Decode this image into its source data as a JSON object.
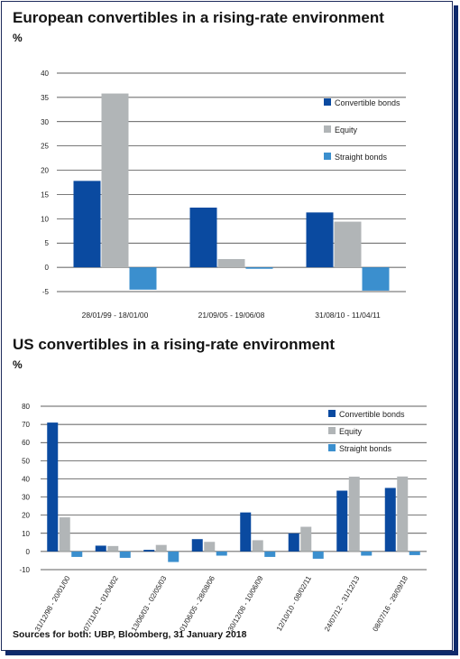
{
  "source_note": "Sources for both: UBP, Bloomberg, 31 January 2018",
  "colors": {
    "convertible": "#0a4aa0",
    "equity": "#b1b5b7",
    "straight": "#3b8fce"
  },
  "chart_data": [
    {
      "type": "bar",
      "title": "European convertibles in a rising-rate environment",
      "ylabel": "%",
      "ylim": [
        -5,
        40
      ],
      "yticks": [
        -5,
        0,
        5,
        10,
        15,
        20,
        25,
        30,
        35,
        40
      ],
      "grid": true,
      "legend_position": "right",
      "categories": [
        "28/01/99 - 18/01/00",
        "21/09/05 - 19/06/08",
        "31/08/10 - 11/04/11"
      ],
      "series": [
        {
          "name": "Convertible bonds",
          "values": [
            17.8,
            12.3,
            11.3
          ]
        },
        {
          "name": "Equity",
          "values": [
            35.8,
            1.7,
            9.4
          ]
        },
        {
          "name": "Straight bonds",
          "values": [
            -4.6,
            -0.3,
            -4.8
          ]
        }
      ]
    },
    {
      "type": "bar",
      "title": "US convertibles in a rising-rate environment",
      "ylabel": "%",
      "ylim": [
        -10,
        80
      ],
      "yticks": [
        -10,
        0,
        10,
        20,
        30,
        40,
        50,
        60,
        70,
        80
      ],
      "grid": true,
      "legend_position": "top-right",
      "categories": [
        "31/12/98 - 20/01/00",
        "07/11/01 - 01/04/02",
        "13/06/03 - 02/05/03",
        "01/06/05 - 28/08/06",
        "30/12/08 - 10/06/09",
        "12/10/10 - 08/02/11",
        "24/07/12 - 31/12/13",
        "08/07/16 - 28/09/18"
      ],
      "series": [
        {
          "name": "Convertible bonds",
          "values": [
            71.0,
            3.2,
            0.9,
            6.8,
            21.5,
            10.0,
            33.5,
            35.0
          ]
        },
        {
          "name": "Equity",
          "values": [
            18.8,
            3.0,
            3.6,
            5.3,
            6.2,
            13.6,
            41.2,
            41.3
          ]
        },
        {
          "name": "Straight bonds",
          "values": [
            -3.0,
            -3.5,
            -5.8,
            -2.3,
            -3.0,
            -4.0,
            -2.3,
            -2.0
          ]
        }
      ]
    }
  ]
}
